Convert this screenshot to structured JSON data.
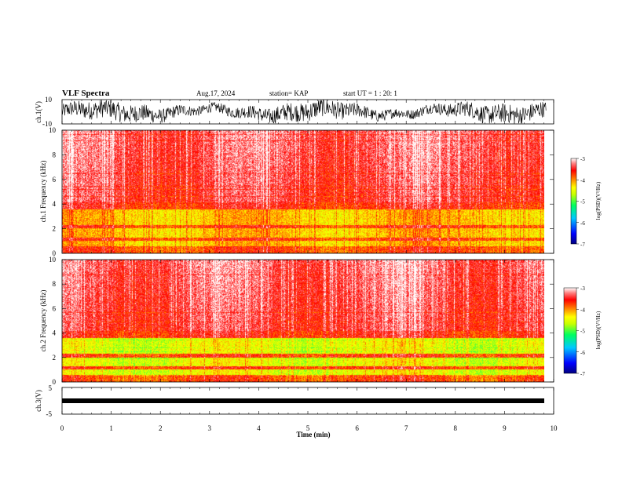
{
  "header": {
    "title": "VLF Spectra",
    "date": "Aug.17, 2024",
    "station": "station= KAP",
    "start": "start  UT =   1 : 20: 1"
  },
  "chart_data": [
    {
      "type": "line",
      "name": "ch1-waveform",
      "ylabel": "ch.1(V)",
      "ylim": [
        -10,
        10
      ],
      "yticks": [
        "10",
        "-10"
      ],
      "xlim": [
        0,
        10
      ],
      "description_values": "noisy signal filling approx. -9 to 9 V over 0 to 9.85 min"
    },
    {
      "type": "heatmap",
      "name": "ch1-spectrogram",
      "ylabel": "ch.1  Frequency (kHz)",
      "ylim": [
        0,
        10
      ],
      "yticks": [
        "0",
        "2",
        "4",
        "6",
        "8",
        "10"
      ],
      "xlim": [
        0,
        9.85
      ],
      "colorbar": {
        "label": "log(PSD)(V²/Hz)",
        "min": -7,
        "max": -3,
        "ticks": [
          "-3",
          "-4",
          "-5",
          "-6",
          "-7"
        ]
      }
    },
    {
      "type": "heatmap",
      "name": "ch2-spectrogram",
      "ylabel": "ch.2  Frequency (kHz)",
      "ylim": [
        0,
        10
      ],
      "yticks": [
        "0",
        "2",
        "4",
        "6",
        "8",
        "10"
      ],
      "xlim": [
        0,
        9.85
      ],
      "colorbar": {
        "label": "log(PSD)(V²/Hz)",
        "min": -7,
        "max": -3,
        "ticks": [
          "-3",
          "-4",
          "-5",
          "-6",
          "-7"
        ]
      }
    },
    {
      "type": "line",
      "name": "ch3-waveform",
      "ylabel": "ch.3(V)",
      "ylim": [
        -5,
        5
      ],
      "yticks": [
        "5",
        "-5"
      ],
      "xlim": [
        0,
        10
      ],
      "description_values": "nearly constant band around -1 V"
    }
  ],
  "xaxis": {
    "label": "Time (min)",
    "ticks": [
      "0",
      "1",
      "2",
      "3",
      "4",
      "5",
      "6",
      "7",
      "8",
      "9",
      "10"
    ]
  },
  "colors": {
    "cmap": [
      "#000080",
      "#0000ff",
      "#00c8ff",
      "#00ff60",
      "#c8ff00",
      "#ffff00",
      "#ff8000",
      "#ff0000",
      "#ff8080",
      "#ffffff"
    ]
  }
}
